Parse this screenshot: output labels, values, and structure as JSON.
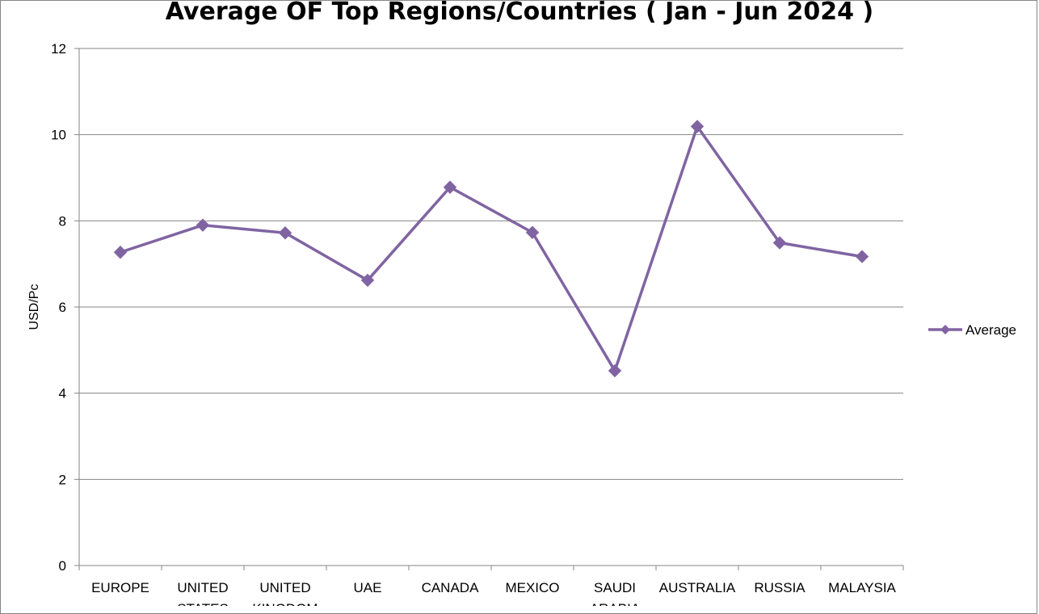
{
  "chart_data": {
    "type": "line",
    "title": "Average OF Top Regions/Countries ( Jan - Jun 2024 )",
    "ylabel": "USD/Pc",
    "xlabel": "",
    "ylim": [
      0,
      12
    ],
    "yticks": [
      0,
      2,
      4,
      6,
      8,
      10,
      12
    ],
    "grid": true,
    "legend_position": "right",
    "categories": [
      [
        "EUROPE"
      ],
      [
        "UNITED",
        "STATES"
      ],
      [
        "UNITED",
        "KINGDOM"
      ],
      [
        "UAE"
      ],
      [
        "CANADA"
      ],
      [
        "MEXICO"
      ],
      [
        "SAUDI",
        "ARABIA"
      ],
      [
        "AUSTRALIA"
      ],
      [
        "RUSSIA"
      ],
      [
        "MALAYSIA"
      ]
    ],
    "series": [
      {
        "name": "Average",
        "color": "#8064A2",
        "values": [
          7.27,
          7.9,
          7.72,
          6.62,
          8.78,
          7.73,
          4.52,
          10.19,
          7.49,
          7.17
        ]
      }
    ]
  }
}
